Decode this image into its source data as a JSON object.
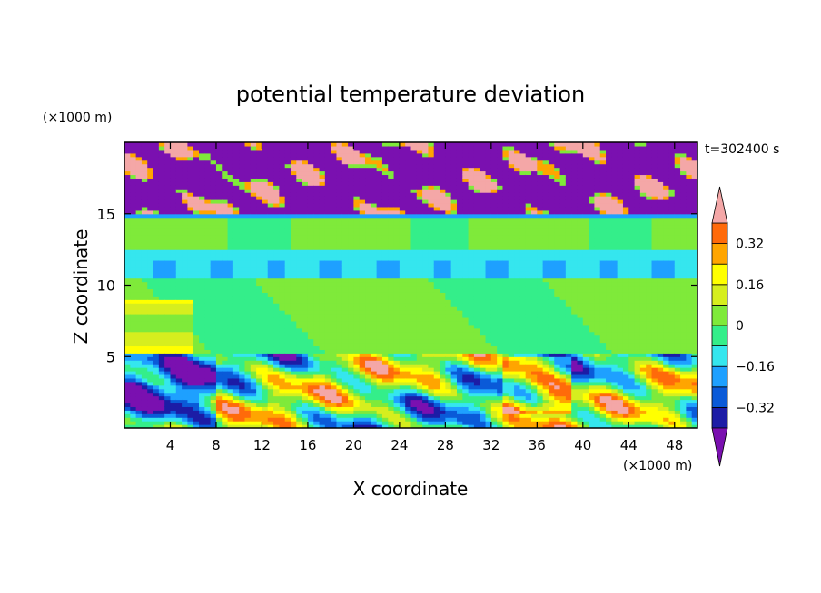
{
  "chart_data": {
    "type": "heatmap",
    "title": "potential temperature deviation",
    "time_label": "t=302400 s",
    "xlabel": "X coordinate",
    "ylabel": "Z coordinate",
    "x_unit": "(×1000 m)",
    "y_unit": "(×1000 m)",
    "xlim": [
      0,
      50
    ],
    "ylim": [
      0,
      20
    ],
    "x_ticks": [
      {
        "value": 4,
        "label": "4"
      },
      {
        "value": 8,
        "label": "8"
      },
      {
        "value": 12,
        "label": "12"
      },
      {
        "value": 16,
        "label": "16"
      },
      {
        "value": 20,
        "label": "20"
      },
      {
        "value": 24,
        "label": "24"
      },
      {
        "value": 28,
        "label": "28"
      },
      {
        "value": 32,
        "label": "32"
      },
      {
        "value": 36,
        "label": "36"
      },
      {
        "value": 40,
        "label": "40"
      },
      {
        "value": 44,
        "label": "44"
      },
      {
        "value": 48,
        "label": "48"
      }
    ],
    "y_ticks": [
      {
        "value": 5,
        "label": "5"
      },
      {
        "value": 10,
        "label": "10"
      },
      {
        "value": 15,
        "label": "15"
      }
    ],
    "colorbar": {
      "levels": [
        -0.4,
        -0.32,
        -0.24,
        -0.16,
        -0.08,
        0,
        0.08,
        0.16,
        0.24,
        0.32,
        0.4
      ],
      "colors": [
        "#1c1ca6",
        "#0a5ad8",
        "#1ea0ff",
        "#35e6ee",
        "#34ee8a",
        "#7fea3a",
        "#d6ee1e",
        "#ffff00",
        "#ffa500",
        "#ff6a0a",
        "#ff2a2a"
      ],
      "under_color": "#7a10b0",
      "over_color": "#f4a7a7",
      "tick_labels": [
        {
          "value": 0.32,
          "label": "0.32"
        },
        {
          "value": 0.16,
          "label": "0.16"
        },
        {
          "value": 0,
          "label": "0"
        },
        {
          "value": -0.16,
          "label": "−0.16"
        },
        {
          "value": -0.32,
          "label": "−0.32"
        }
      ]
    },
    "field_bands": [
      {
        "z": [
          15,
          20
        ],
        "value": -0.5,
        "description_label": ""
      },
      {
        "z": [
          14.7,
          15
        ],
        "value": -0.2
      },
      {
        "z": [
          12.5,
          14.7
        ],
        "value": 0.0
      },
      {
        "z": [
          11.8,
          12.5
        ],
        "value": -0.1
      },
      {
        "z": [
          10.5,
          11.8
        ],
        "value": -0.15
      },
      {
        "z": [
          5.3,
          10.5
        ],
        "value": 0.02
      },
      {
        "z": [
          0,
          5.3
        ],
        "value": 0.1
      }
    ]
  }
}
